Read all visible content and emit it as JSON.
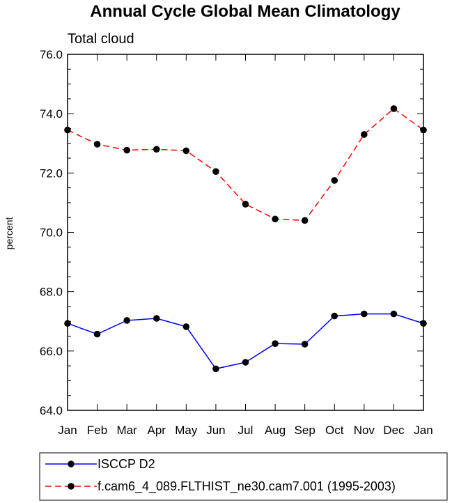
{
  "chart_data": {
    "type": "line",
    "title": "Annual Cycle Global Mean Climatology",
    "subtitle": "Total cloud",
    "xlabel": "",
    "ylabel": "percent",
    "categories": [
      "Jan",
      "Feb",
      "Mar",
      "Apr",
      "May",
      "Jun",
      "Jul",
      "Aug",
      "Sep",
      "Oct",
      "Nov",
      "Dec",
      "Jan"
    ],
    "ylim": [
      64.0,
      76.0
    ],
    "yticks": [
      "64.0",
      "66.0",
      "68.0",
      "70.0",
      "72.0",
      "74.0",
      "76.0"
    ],
    "grid": false,
    "legend_position": "bottom",
    "series": [
      {
        "name": "ISCCP D2",
        "color": "#0000ff",
        "line_style": "solid",
        "marker": "filled-circle",
        "values": [
          66.93,
          66.57,
          67.03,
          67.1,
          66.82,
          65.4,
          65.62,
          66.25,
          66.23,
          67.18,
          67.25,
          67.25,
          66.93
        ]
      },
      {
        "name": "f.cam6_4_089.FLTHIST_ne30.cam7.001 (1995-2003)",
        "color": "#ff0000",
        "line_style": "dashed",
        "marker": "filled-circle",
        "values": [
          73.45,
          72.97,
          72.77,
          72.8,
          72.75,
          72.05,
          70.95,
          70.45,
          70.4,
          71.75,
          73.3,
          74.17,
          73.45
        ]
      }
    ]
  }
}
